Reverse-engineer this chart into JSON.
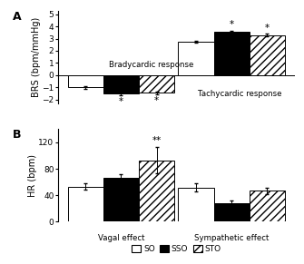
{
  "panel_A": {
    "SO_values": [
      -1.0,
      2.75
    ],
    "SSO_values": [
      -1.5,
      3.55
    ],
    "STO_values": [
      -1.45,
      3.3
    ],
    "SO_err": [
      0.12,
      0.1
    ],
    "SSO_err": [
      0.12,
      0.1
    ],
    "STO_err": [
      0.12,
      0.1
    ],
    "ylabel": "BRS (bpm/mmHg)",
    "ylim": [
      -2.3,
      5.3
    ],
    "yticks": [
      -2,
      -1,
      0,
      1,
      2,
      3,
      4,
      5
    ],
    "brady_label": "Bradycardic response",
    "tachy_label": "Tachycardic response",
    "sig_SSO_brady": "*",
    "sig_STO_brady": "*",
    "sig_SSO_tachy": "*",
    "sig_STO_tachy": "*"
  },
  "panel_B": {
    "SO_values": [
      53,
      52
    ],
    "SSO_values": [
      67,
      28
    ],
    "STO_values": [
      93,
      47
    ],
    "SO_err": [
      5,
      6
    ],
    "SSO_err": [
      5,
      4
    ],
    "STO_err": [
      20,
      5
    ],
    "ylabel": "HR (bpm)",
    "ylim": [
      0,
      140
    ],
    "yticks": [
      0,
      40,
      80,
      120
    ],
    "vagal_label": "Vagal effect",
    "symp_label": "Sympathetic effect",
    "sig_STO_vagal": "**",
    "sig_SSO_symp": "*"
  },
  "legend_labels": [
    "SO",
    "SSO",
    "STO"
  ],
  "bar_width": 0.18,
  "group_centers": [
    0.32,
    0.88
  ],
  "xlim": [
    0.0,
    1.2
  ],
  "fig_bg": "#ffffff",
  "label_fontsize": 7,
  "tick_fontsize": 6.5,
  "sig_fontsize": 7.5,
  "hatch": "////"
}
